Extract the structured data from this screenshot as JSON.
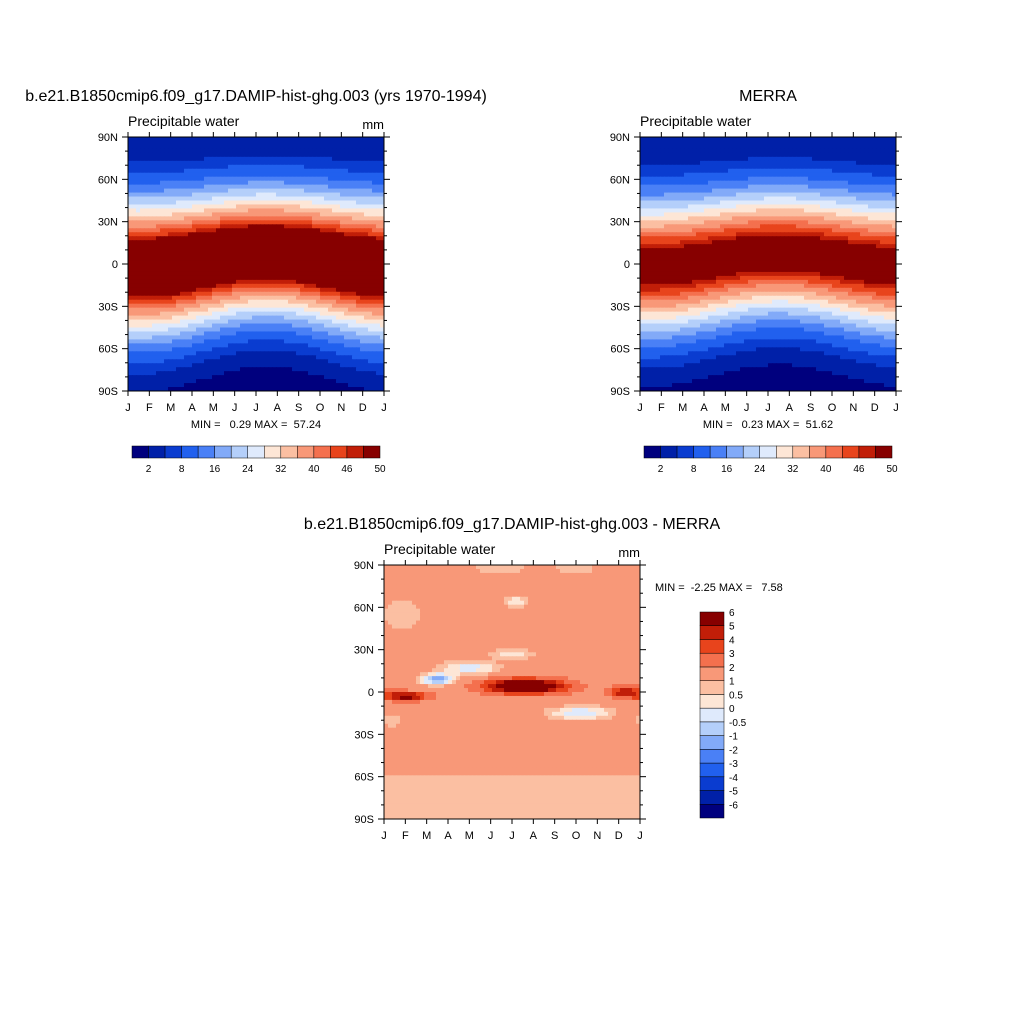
{
  "chart_data": [
    {
      "type": "heatmap",
      "id": "model",
      "title": "b.e21.B1850cmip6.f09_g17.DAMIP-hist-ghg.003 (yrs 1970-1994)",
      "subtitle": "Precipitable water",
      "units": "mm",
      "x_ticks": [
        "J",
        "F",
        "M",
        "A",
        "M",
        "J",
        "J",
        "A",
        "S",
        "O",
        "N",
        "D",
        "J"
      ],
      "y_ticks": [
        "90N",
        "60N",
        "30N",
        "0",
        "30S",
        "60S",
        "90S"
      ],
      "ylim": [
        -90,
        90
      ],
      "stats_label": "MIN =   0.29 MAX =  57.24",
      "min": 0.29,
      "max": 57.24,
      "colorbar_orientation": "horizontal",
      "levels": [
        2,
        5,
        8,
        12,
        16,
        20,
        24,
        28,
        32,
        36,
        40,
        43,
        46,
        48,
        50
      ],
      "colorbar_labels": [
        {
          "after_level": 2,
          "text": "2"
        },
        {
          "after_level": 8,
          "text": "8"
        },
        {
          "after_level": 16,
          "text": "16"
        },
        {
          "after_level": 24,
          "text": "24"
        },
        {
          "after_level": 32,
          "text": "32"
        },
        {
          "after_level": 40,
          "text": "40"
        },
        {
          "after_level": 46,
          "text": "46"
        },
        {
          "after_level": 50,
          "text": "50"
        }
      ],
      "colors": [
        "#00007e",
        "#0020a8",
        "#0a3cd0",
        "#2160ee",
        "#4a80f6",
        "#82aaf8",
        "#b4cffa",
        "#dfeafc",
        "#fde6d6",
        "#fbbfa2",
        "#f89878",
        "#f4704e",
        "#e8441c",
        "#c11e08",
        "#870000"
      ],
      "field": {
        "eq_amp": 58,
        "center_lat_at_jan": -3,
        "center_lat_at_jul": 8,
        "merid_scale_at_jan": 48,
        "merid_scale_at_jul": 44,
        "south_pole_value": 1.5,
        "north_pole_value": 5
      }
    },
    {
      "type": "heatmap",
      "id": "obs",
      "title": "MERRA",
      "subtitle": "Precipitable water",
      "units": "",
      "x_ticks": [
        "J",
        "F",
        "M",
        "A",
        "M",
        "J",
        "J",
        "A",
        "S",
        "O",
        "N",
        "D",
        "J"
      ],
      "y_ticks": [
        "90N",
        "60N",
        "30N",
        "0",
        "30S",
        "60S",
        "90S"
      ],
      "ylim": [
        -90,
        90
      ],
      "stats_label": "MIN =   0.23 MAX =  51.62",
      "min": 0.23,
      "max": 51.62,
      "colorbar_orientation": "horizontal",
      "levels": [
        2,
        5,
        8,
        12,
        16,
        20,
        24,
        28,
        32,
        36,
        40,
        43,
        46,
        48,
        50
      ],
      "colorbar_labels": [
        {
          "after_level": 2,
          "text": "2"
        },
        {
          "after_level": 8,
          "text": "8"
        },
        {
          "after_level": 16,
          "text": "16"
        },
        {
          "after_level": 24,
          "text": "24"
        },
        {
          "after_level": 32,
          "text": "32"
        },
        {
          "after_level": 40,
          "text": "40"
        },
        {
          "after_level": 46,
          "text": "46"
        },
        {
          "after_level": 50,
          "text": "50"
        }
      ],
      "colors": [
        "#00007e",
        "#0020a8",
        "#0a3cd0",
        "#2160ee",
        "#4a80f6",
        "#82aaf8",
        "#b4cffa",
        "#dfeafc",
        "#fde6d6",
        "#fbbfa2",
        "#f89878",
        "#f4704e",
        "#e8441c",
        "#c11e08",
        "#870000"
      ],
      "field": {
        "eq_amp": 52,
        "center_lat_at_jan": -2,
        "center_lat_at_jul": 8,
        "merid_scale_at_jan": 47,
        "merid_scale_at_jul": 44,
        "south_pole_value": 1.2,
        "north_pole_value": 4
      }
    },
    {
      "type": "heatmap",
      "id": "diff",
      "title": "b.e21.B1850cmip6.f09_g17.DAMIP-hist-ghg.003 - MERRA",
      "subtitle": "Precipitable water",
      "units": "mm",
      "x_ticks": [
        "J",
        "F",
        "M",
        "A",
        "M",
        "J",
        "J",
        "A",
        "S",
        "O",
        "N",
        "D",
        "J"
      ],
      "y_ticks": [
        "90N",
        "60N",
        "30N",
        "0",
        "30S",
        "60S",
        "90S"
      ],
      "ylim": [
        -90,
        90
      ],
      "stats_label": "MIN =  -2.25 MAX =   7.58",
      "min": -2.25,
      "max": 7.58,
      "colorbar_orientation": "vertical",
      "levels": [
        -6,
        -5,
        -4,
        -3,
        -2,
        -1,
        -0.5,
        0,
        0.5,
        1,
        2,
        3,
        4,
        5,
        6
      ],
      "colorbar_labels": [
        {
          "after_level": -6,
          "text": "-6"
        },
        {
          "after_level": -5,
          "text": "-5"
        },
        {
          "after_level": -4,
          "text": "-4"
        },
        {
          "after_level": -3,
          "text": "-3"
        },
        {
          "after_level": -2,
          "text": "-2"
        },
        {
          "after_level": -1,
          "text": "-1"
        },
        {
          "after_level": -0.5,
          "text": "-0.5"
        },
        {
          "after_level": 0,
          "text": "0"
        },
        {
          "after_level": 0.5,
          "text": "0.5"
        },
        {
          "after_level": 1,
          "text": "1"
        },
        {
          "after_level": 2,
          "text": "2"
        },
        {
          "after_level": 3,
          "text": "3"
        },
        {
          "after_level": 4,
          "text": "4"
        },
        {
          "after_level": 5,
          "text": "5"
        },
        {
          "after_level": 6,
          "text": "6"
        }
      ],
      "colors": [
        "#00007e",
        "#0020a8",
        "#0a3cd0",
        "#2160ee",
        "#4a80f6",
        "#82aaf8",
        "#b4cffa",
        "#dfeafc",
        "#fde6d6",
        "#fbbfa2",
        "#f89878",
        "#f4704e",
        "#e8441c",
        "#c11e08",
        "#870000"
      ],
      "field": {
        "base_value": 1.5,
        "high_lat_south_value": 0.75,
        "features": [
          {
            "value": 6.5,
            "month": 6.6,
            "lat": 4,
            "sig_month": 1.8,
            "sig_lat": 5
          },
          {
            "value": 4.5,
            "month": 1.0,
            "lat": -3,
            "sig_month": 1.0,
            "sig_lat": 3
          },
          {
            "value": 3.5,
            "month": 11.3,
            "lat": 0,
            "sig_month": 0.7,
            "sig_lat": 4
          },
          {
            "value": -3.0,
            "month": 2.5,
            "lat": 9,
            "sig_month": 0.8,
            "sig_lat": 4
          },
          {
            "value": -1.8,
            "month": 4.0,
            "lat": 17,
            "sig_month": 1.4,
            "sig_lat": 5
          },
          {
            "value": -1.5,
            "month": 6.0,
            "lat": 27,
            "sig_month": 1.0,
            "sig_lat": 4
          },
          {
            "value": -2.0,
            "month": 9.2,
            "lat": -15,
            "sig_month": 1.5,
            "sig_lat": 5
          },
          {
            "value": -1.0,
            "month": 0.3,
            "lat": -20,
            "sig_month": 0.6,
            "sig_lat": 5
          },
          {
            "value": -1.3,
            "month": 6.2,
            "lat": 64,
            "sig_month": 0.6,
            "sig_lat": 5
          },
          {
            "value": -1.0,
            "month": 5.4,
            "lat": 88,
            "sig_month": 1.4,
            "sig_lat": 5
          },
          {
            "value": -1.0,
            "month": 9.0,
            "lat": 88,
            "sig_month": 1.0,
            "sig_lat": 5
          },
          {
            "value": -1.0,
            "month": 0.8,
            "lat": 55,
            "sig_month": 1.0,
            "sig_lat": 12
          },
          {
            "value": 0.6,
            "month": 5.0,
            "lat": 45,
            "sig_month": 0.3,
            "sig_lat": 3
          }
        ]
      }
    }
  ]
}
